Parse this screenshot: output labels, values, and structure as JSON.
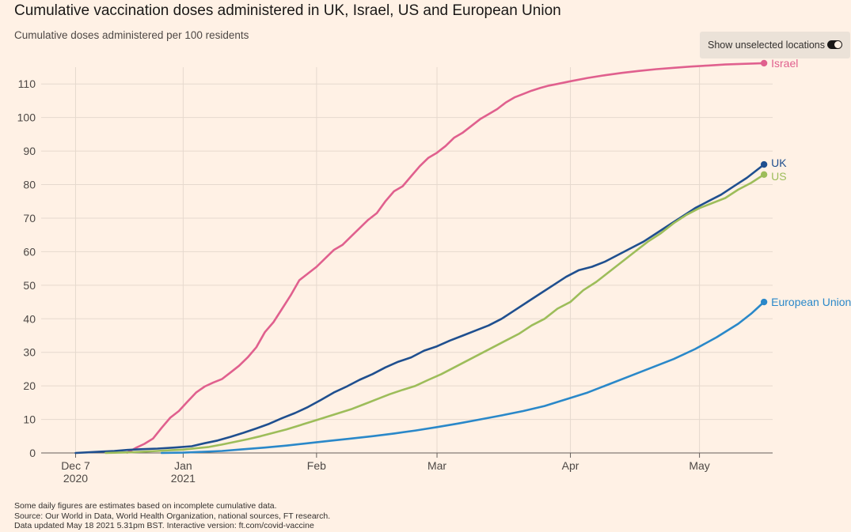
{
  "header": {
    "title": "Cumulative vaccination doses administered in UK, Israel, US and European Union",
    "subtitle": "Cumulative doses administered per 100 residents"
  },
  "toggle": {
    "label": "Show unselected locations",
    "state": "on",
    "icon": "toggle-switch-icon"
  },
  "footer": {
    "note": "Some daily figures are estimates based on incomplete cumulative data.",
    "source": "Source: Our World in Data, World Health Organization, national sources, FT research.",
    "updated": "Data updated May 18 2021 5.31pm BST. Interactive version: ft.com/covid-vaccine"
  },
  "chart_data": {
    "type": "line",
    "title": "Cumulative vaccination doses administered in UK, Israel, US and European Union",
    "subtitle": "Cumulative doses administered per 100 residents",
    "xlabel": "",
    "ylabel": "",
    "x_range": [
      "2020-11-29",
      "2021-05-18"
    ],
    "ylim": [
      0,
      115
    ],
    "yticks": [
      0,
      10,
      20,
      30,
      40,
      50,
      60,
      70,
      80,
      90,
      100,
      110
    ],
    "xticks": [
      {
        "date": "2020-12-07",
        "label": "Dec 7",
        "sublabel": "2020"
      },
      {
        "date": "2021-01-01",
        "label": "Jan",
        "sublabel": "2021"
      },
      {
        "date": "2021-02-01",
        "label": "Feb",
        "sublabel": ""
      },
      {
        "date": "2021-03-01",
        "label": "Mar",
        "sublabel": ""
      },
      {
        "date": "2021-04-01",
        "label": "Apr",
        "sublabel": ""
      },
      {
        "date": "2021-05-01",
        "label": "May",
        "sublabel": ""
      }
    ],
    "grid": true,
    "legend": "direct labels at line ends",
    "series": [
      {
        "name": "Israel",
        "color": "#e0608e",
        "points": [
          [
            "2020-12-19",
            0.1
          ],
          [
            "2020-12-21",
            1.5
          ],
          [
            "2020-12-23",
            2.7
          ],
          [
            "2020-12-25",
            4.3
          ],
          [
            "2020-12-27",
            7.5
          ],
          [
            "2020-12-29",
            10.5
          ],
          [
            "2020-12-31",
            12.5
          ],
          [
            "2021-01-02",
            15.3
          ],
          [
            "2021-01-04",
            18.0
          ],
          [
            "2021-01-06",
            19.8
          ],
          [
            "2021-01-08",
            21.0
          ],
          [
            "2021-01-10",
            22.0
          ],
          [
            "2021-01-12",
            24.0
          ],
          [
            "2021-01-14",
            26.0
          ],
          [
            "2021-01-16",
            28.5
          ],
          [
            "2021-01-18",
            31.5
          ],
          [
            "2021-01-20",
            36.0
          ],
          [
            "2021-01-22",
            39.0
          ],
          [
            "2021-01-24",
            43.0
          ],
          [
            "2021-01-26",
            47.0
          ],
          [
            "2021-01-28",
            51.5
          ],
          [
            "2021-01-30",
            53.5
          ],
          [
            "2021-02-01",
            55.5
          ],
          [
            "2021-02-03",
            58.0
          ],
          [
            "2021-02-05",
            60.5
          ],
          [
            "2021-02-07",
            62.0
          ],
          [
            "2021-02-09",
            64.5
          ],
          [
            "2021-02-11",
            67.0
          ],
          [
            "2021-02-13",
            69.5
          ],
          [
            "2021-02-15",
            71.5
          ],
          [
            "2021-02-17",
            75.0
          ],
          [
            "2021-02-19",
            78.0
          ],
          [
            "2021-02-21",
            79.5
          ],
          [
            "2021-02-23",
            82.5
          ],
          [
            "2021-02-25",
            85.5
          ],
          [
            "2021-02-27",
            88.0
          ],
          [
            "2021-03-01",
            89.5
          ],
          [
            "2021-03-03",
            91.5
          ],
          [
            "2021-03-05",
            94.0
          ],
          [
            "2021-03-07",
            95.5
          ],
          [
            "2021-03-09",
            97.5
          ],
          [
            "2021-03-11",
            99.5
          ],
          [
            "2021-03-13",
            101.0
          ],
          [
            "2021-03-15",
            102.5
          ],
          [
            "2021-03-17",
            104.5
          ],
          [
            "2021-03-19",
            106.0
          ],
          [
            "2021-03-21",
            107.0
          ],
          [
            "2021-03-23",
            108.0
          ],
          [
            "2021-03-25",
            108.8
          ],
          [
            "2021-03-27",
            109.5
          ],
          [
            "2021-03-29",
            110.0
          ],
          [
            "2021-04-01",
            110.8
          ],
          [
            "2021-04-05",
            111.8
          ],
          [
            "2021-04-09",
            112.6
          ],
          [
            "2021-04-13",
            113.3
          ],
          [
            "2021-04-17",
            113.9
          ],
          [
            "2021-04-21",
            114.4
          ],
          [
            "2021-04-25",
            114.8
          ],
          [
            "2021-04-29",
            115.2
          ],
          [
            "2021-05-03",
            115.5
          ],
          [
            "2021-05-07",
            115.8
          ],
          [
            "2021-05-11",
            116.0
          ],
          [
            "2021-05-16",
            116.2
          ]
        ]
      },
      {
        "name": "UK",
        "color": "#1f4f8f",
        "points": [
          [
            "2020-12-07",
            0.0
          ],
          [
            "2020-12-10",
            0.2
          ],
          [
            "2020-12-13",
            0.4
          ],
          [
            "2020-12-16",
            0.6
          ],
          [
            "2020-12-19",
            0.9
          ],
          [
            "2020-12-22",
            1.1
          ],
          [
            "2020-12-26",
            1.3
          ],
          [
            "2020-12-30",
            1.6
          ],
          [
            "2021-01-03",
            2.0
          ],
          [
            "2021-01-06",
            2.9
          ],
          [
            "2021-01-09",
            3.7
          ],
          [
            "2021-01-12",
            4.8
          ],
          [
            "2021-01-15",
            6.0
          ],
          [
            "2021-01-18",
            7.3
          ],
          [
            "2021-01-21",
            8.7
          ],
          [
            "2021-01-24",
            10.4
          ],
          [
            "2021-01-27",
            11.9
          ],
          [
            "2021-01-30",
            13.7
          ],
          [
            "2021-02-02",
            15.8
          ],
          [
            "2021-02-05",
            18.0
          ],
          [
            "2021-02-08",
            19.8
          ],
          [
            "2021-02-11",
            21.8
          ],
          [
            "2021-02-14",
            23.5
          ],
          [
            "2021-02-17",
            25.5
          ],
          [
            "2021-02-20",
            27.2
          ],
          [
            "2021-02-23",
            28.5
          ],
          [
            "2021-02-26",
            30.5
          ],
          [
            "2021-03-01",
            31.8
          ],
          [
            "2021-03-04",
            33.5
          ],
          [
            "2021-03-07",
            35.0
          ],
          [
            "2021-03-10",
            36.5
          ],
          [
            "2021-03-13",
            38.0
          ],
          [
            "2021-03-16",
            40.0
          ],
          [
            "2021-03-19",
            42.5
          ],
          [
            "2021-03-22",
            45.0
          ],
          [
            "2021-03-25",
            47.5
          ],
          [
            "2021-03-28",
            50.0
          ],
          [
            "2021-03-31",
            52.5
          ],
          [
            "2021-04-03",
            54.5
          ],
          [
            "2021-04-06",
            55.5
          ],
          [
            "2021-04-09",
            57.0
          ],
          [
            "2021-04-12",
            59.0
          ],
          [
            "2021-04-15",
            61.0
          ],
          [
            "2021-04-18",
            63.0
          ],
          [
            "2021-04-21",
            65.5
          ],
          [
            "2021-04-24",
            68.0
          ],
          [
            "2021-04-27",
            70.5
          ],
          [
            "2021-04-30",
            73.0
          ],
          [
            "2021-05-03",
            75.0
          ],
          [
            "2021-05-06",
            77.0
          ],
          [
            "2021-05-09",
            79.5
          ],
          [
            "2021-05-12",
            82.0
          ],
          [
            "2021-05-16",
            86.0
          ]
        ]
      },
      {
        "name": "US",
        "color": "#9dbd5a",
        "points": [
          [
            "2020-12-14",
            0.0
          ],
          [
            "2020-12-17",
            0.1
          ],
          [
            "2020-12-20",
            0.2
          ],
          [
            "2020-12-23",
            0.4
          ],
          [
            "2020-12-26",
            0.6
          ],
          [
            "2020-12-29",
            0.8
          ],
          [
            "2021-01-01",
            1.0
          ],
          [
            "2021-01-04",
            1.4
          ],
          [
            "2021-01-07",
            1.8
          ],
          [
            "2021-01-10",
            2.5
          ],
          [
            "2021-01-13",
            3.3
          ],
          [
            "2021-01-16",
            4.1
          ],
          [
            "2021-01-19",
            5.0
          ],
          [
            "2021-01-22",
            6.0
          ],
          [
            "2021-01-25",
            7.0
          ],
          [
            "2021-01-28",
            8.2
          ],
          [
            "2021-01-31",
            9.4
          ],
          [
            "2021-02-03",
            10.6
          ],
          [
            "2021-02-06",
            11.8
          ],
          [
            "2021-02-09",
            13.0
          ],
          [
            "2021-02-12",
            14.5
          ],
          [
            "2021-02-15",
            16.0
          ],
          [
            "2021-02-18",
            17.5
          ],
          [
            "2021-02-21",
            18.8
          ],
          [
            "2021-02-24",
            20.0
          ],
          [
            "2021-02-27",
            21.8
          ],
          [
            "2021-03-02",
            23.5
          ],
          [
            "2021-03-05",
            25.5
          ],
          [
            "2021-03-08",
            27.5
          ],
          [
            "2021-03-11",
            29.5
          ],
          [
            "2021-03-14",
            31.5
          ],
          [
            "2021-03-17",
            33.5
          ],
          [
            "2021-03-20",
            35.5
          ],
          [
            "2021-03-23",
            38.0
          ],
          [
            "2021-03-26",
            40.0
          ],
          [
            "2021-03-29",
            43.0
          ],
          [
            "2021-04-01",
            45.0
          ],
          [
            "2021-04-04",
            48.5
          ],
          [
            "2021-04-07",
            51.0
          ],
          [
            "2021-04-10",
            54.0
          ],
          [
            "2021-04-13",
            57.0
          ],
          [
            "2021-04-16",
            60.0
          ],
          [
            "2021-04-19",
            63.0
          ],
          [
            "2021-04-22",
            65.5
          ],
          [
            "2021-04-25",
            68.5
          ],
          [
            "2021-04-28",
            71.0
          ],
          [
            "2021-05-01",
            73.0
          ],
          [
            "2021-05-04",
            74.5
          ],
          [
            "2021-05-07",
            76.0
          ],
          [
            "2021-05-10",
            78.5
          ],
          [
            "2021-05-13",
            80.5
          ],
          [
            "2021-05-16",
            83.0
          ]
        ]
      },
      {
        "name": "European Union",
        "color": "#2a88c9",
        "points": [
          [
            "2020-12-27",
            0.0
          ],
          [
            "2021-01-01",
            0.1
          ],
          [
            "2021-01-05",
            0.3
          ],
          [
            "2021-01-10",
            0.6
          ],
          [
            "2021-01-15",
            1.1
          ],
          [
            "2021-01-20",
            1.6
          ],
          [
            "2021-01-25",
            2.2
          ],
          [
            "2021-01-30",
            2.9
          ],
          [
            "2021-02-04",
            3.6
          ],
          [
            "2021-02-09",
            4.3
          ],
          [
            "2021-02-14",
            5.0
          ],
          [
            "2021-02-19",
            5.8
          ],
          [
            "2021-02-24",
            6.7
          ],
          [
            "2021-03-01",
            7.7
          ],
          [
            "2021-03-06",
            8.8
          ],
          [
            "2021-03-11",
            10.0
          ],
          [
            "2021-03-16",
            11.2
          ],
          [
            "2021-03-21",
            12.5
          ],
          [
            "2021-03-26",
            14.0
          ],
          [
            "2021-03-31",
            16.0
          ],
          [
            "2021-04-05",
            18.0
          ],
          [
            "2021-04-10",
            20.5
          ],
          [
            "2021-04-15",
            23.0
          ],
          [
            "2021-04-20",
            25.5
          ],
          [
            "2021-04-25",
            28.0
          ],
          [
            "2021-04-30",
            31.0
          ],
          [
            "2021-05-05",
            34.5
          ],
          [
            "2021-05-10",
            38.5
          ],
          [
            "2021-05-13",
            41.5
          ],
          [
            "2021-05-16",
            45.0
          ]
        ]
      }
    ]
  }
}
